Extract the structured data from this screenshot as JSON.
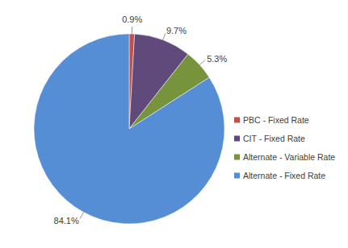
{
  "chart_data": {
    "type": "pie",
    "categories": [
      "PBC - Fixed Rate",
      "CIT - Fixed Rate",
      "Alternate - Variable Rate",
      "Alternate - Fixed Rate"
    ],
    "values": [
      0.9,
      9.7,
      5.3,
      84.1
    ],
    "value_labels": [
      "0.9%",
      "9.7%",
      "5.3%",
      "84.1%"
    ],
    "colors": [
      "#c0504d",
      "#604a7b",
      "#77933c",
      "#558ed5"
    ],
    "data_labels": true,
    "legend": "right"
  }
}
